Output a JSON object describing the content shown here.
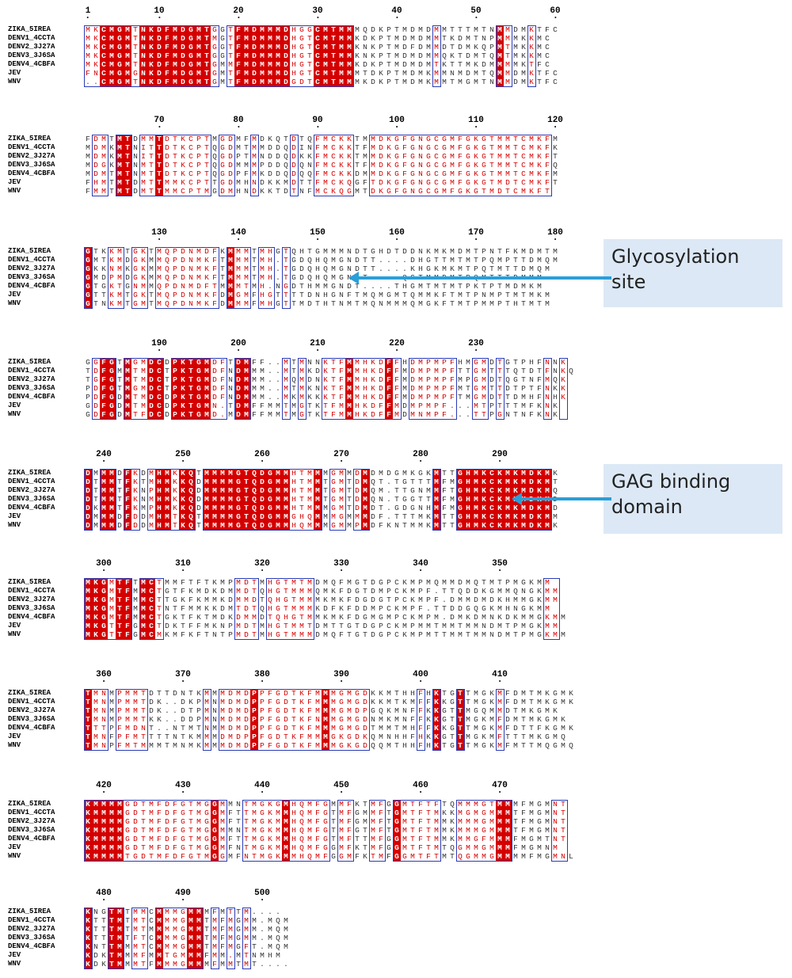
{
  "sequences": [
    "ZIKA_5IREA",
    "DENV1_4CCTA",
    "DENV2_3J27A",
    "DENV3_3J6SA",
    "DENV4_4CBFA",
    "JEV",
    "WNV"
  ],
  "blocks": [
    {
      "ticks": [
        "1",
        "10",
        "20",
        "30",
        "40",
        "50",
        "60"
      ],
      "tick_positions": [
        1,
        10,
        20,
        30,
        40,
        50,
        60
      ],
      "start": 1,
      "rows": [
        "MKCMGMTNKDFMDGMTGGTFMDMMMDHGGCMTMMMQDKPTMDMDMMTTTMTNMMDMKTFC",
        "MKCMGMTNKDFMDGMTMGTFMDMMMDHGTCMTMMKDKPTMDMDMMTKDMTNPMMMKKMC",
        "MKCMGMTNKDFMDGMTGGTFMDMMMDHGTCMTMMKNKPTMDFDMMDTDMKQPMTMKKMC",
        "MKCMGMTNKDFMDGMTGGTFMDMMMDHGTCMTMMKNKPTMDMDMMQKTDMTQMTMKKMC",
        "MKCMGMTNKDFMDGMTGMMFMDMMMDHGTCMTMMKDKPTMDMDMTKTTMKDMMMMKTFC",
        "FNCMGMGNKDFMDGMTGMTFMDMMMDHGTCMTMMMTDKPTMDMKMMNMDMTQMMDMKTFC",
        "..CMGMTNKDFMDGMTGMTFMDMMMDGDTCMTMMMKDKPTMDMKMMTMGMTNMMDMKTFC"
      ]
    },
    {
      "ticks": [
        "70",
        "80",
        "90",
        "100",
        "110",
        "120"
      ],
      "tick_positions": [
        70,
        80,
        90,
        100,
        110,
        120
      ],
      "start": 61,
      "rows": [
        "FDMTMTDMMTDTKCPTMGDMFMDKQTDTQFMCKKTMMDKGFGNGCGMFGKGTMMTCMKFM",
        "MDMKMTNITTDTKCPTQGDMTMMDDQDINFMCKKTFMDKGFGNGCGMFGKGTMMTCMKFK",
        "MDMKMTNITTDTKCPTQGDPTMNDDQDKKFMCKKTMMDKGFGNGCGMFGKGTMMTCMKFT",
        "MDGKMTNMTTDTKCPTQGDMMMPDDQDQNFMCKKTFMDKGFGNGCGMFGKGTMMTCMKFQ",
        "MDMTMTNMTTDTKCPTQGDPFMKDDQDQQFMCKKDMMDKGFGNGCGMFGKGTMMTCMKFM",
        "FHMTMTDMTTMMKCPTTGDMHNDKKMDTTFMCKQGFTDKGFGNGCGMFGKGTMDTCMKFT",
        "FMMTMTDMTTMMCPTMGDMHNDKKTDTNFMCKQGMTDKGFGNGCGMFGKGTMDTCMKFT"
      ]
    },
    {
      "ticks": [
        "130",
        "140",
        "150",
        "160",
        "170",
        "180"
      ],
      "tick_positions": [
        130,
        140,
        150,
        160,
        170,
        180
      ],
      "start": 121,
      "rows": [
        "GTKKMTGKTMQPDNMDFKMMMTMHGTQHTGMMMNDTGHDTDDNKMKMDMTPNTFKMDMTM",
        "GMTKMDGKMMQPDNMKFTMMMTMH.TGDQHQMGNDTT....DHGTTMTMTPQMPTTDMQM",
        "GKKNMKGKMMQPDNMKFTMMMTMH.TGDQHQMGNDTT....KHGKMKMTPQTMTTDMQM",
        "GMDPMDGKMMQPDNMKFTMMMTMH.TGDQHQMGNDT....QGTMMDMTPQMTTTDMMM",
        "GTGKTGNMMQPDNMDFTMMMTMH.NGDTHMMGNDT....THGMTMTMTPKTPTMDMKM",
        "GTTKMTGKTMQPDNMKFDMGMFHGTTTTDNHGNFTMQMGMTQMMKFTMTPNMPTMTMKM",
        "GTNKMTGMTMQPDNMKFDMMMFMHGTTMDTHTNMTMQNMMMQMGKFTMTPMMPTHTMTM"
      ]
    },
    {
      "ticks": [
        "190",
        "200",
        "210",
        "220",
        "230"
      ],
      "tick_positions": [
        190,
        200,
        210,
        220,
        230
      ],
      "start": 181,
      "rows": [
        "GGFGTMGMDCDPKTGMDFTDMFF..MTMNNKTFMMHKDFFHDMPMPFHMGMDTGTPHFNNK",
        "TDFGMMTMDCTPKTGMDFNDMMM..MTMKDKTFMMHKDFFMDMPMPFTTGMTTTQTDTFNKQ",
        "TGFGTMTMDCTPKTGMDFNDMMM..MQMDNKTFMMHKDFFMDMPMPFMPGMDTQGTNFMQK",
        "PDFGTMGMDCTPKTGMDFNDMMM..MTMKNKTFMMHKDFFMDMPMPFMTGMTTDTPTFNKK",
        "PDFGDMTMDCDPKTGMDFNDMMM..MKMKKKTFMMHKDFFMDMPMPFTMGMDTTDMHFNHK",
        "GDFGDMTMDCDPKTGMN.TDMFFMMTMGTKTFMMHKDFFMDMPMPF...MTPTTTMFKNK",
        "GDFGDMTFDCDPKTGMD.MDMFFMMTMGTKTFMMHKDFFMDMNMPF...TTPGNTNFKNK"
      ]
    },
    {
      "ticks": [
        "240",
        "250",
        "260",
        "270",
        "280",
        "290"
      ],
      "tick_positions": [
        240,
        250,
        260,
        270,
        280,
        290
      ],
      "start": 238,
      "rows": [
        "DMMMDFKDMHMKKQTMMMMGTQDGMMHTMMMGMMDMDMDGMKGKMTTGHMKCKMKMDKMK",
        "DTMMTFKTMHMKKQDMMMMGTQDGMMHTMMTGMTDMQT.TGTTTMFMGHMKCKMKMDKMT",
        "DTMMTFKNPHMKKQDMMMMGTQDGMMHTMMTGMTDMQM.TTGNMMFTGHMKCKMKMDKMQ",
        "DTMMTFKNMHMKKQDMMMMGTQDGMMHTMMTGMTDMQN.TGGTTMFMGHMKCKMKMDKMD",
        "DKMMTFKMPHMKKQDMMMMGTQDGMMHTMMMGMTDMDT.GDGNHMFMGHMKCKMKMDKMD",
        "DMMMDFDDMHMTKQTMMMMGTQDGMMGHQMMMGMMMDF.TTTMKMTTGHMKCKMKMDKMM",
        "DMMMDFDDMHMTKQTMMMMGTQDGMMHQMMMGMMPMDFKNTMMKMTTGHMKCKMKMDKMK"
      ]
    },
    {
      "ticks": [
        "300",
        "310",
        "320",
        "330",
        "340",
        "350"
      ],
      "tick_positions": [
        300,
        310,
        320,
        330,
        340,
        350
      ],
      "start": 298,
      "rows": [
        "MKGMTFTMCTMMFTFTKMPMDTMHGTMTMDMQFMGTDGPCKMPMQMMDMQTMTPMGKMM",
        "MKGMTFMMCTGTFKMDKDMMDTQHGTMMMQMKFDGTDMPCKMPF.TTQDDKGMMQNGKMM",
        "MKGMTFMMCTTGKFKMMKDMMDTQHGTMMMKMKFDGDGTPCKMPF.DMMDMDKHMMGKMM",
        "MKGMTFMMCTNTFMMKKDMTDTQHGTMMMKDFKFDDMPCKMPF.TTDDGQGKMHNGKMM",
        "MKGMTFMMCTGKTFKTMDKDMMDTQHGTMMKMKFDGMGMPCKMPM.DMKDMNKDKMMGKMM",
        "MKGTTFGMCTDKTFFMKNPMDTMHGTMMTDMTTGTDGPCKMPMMTMMTMMNDMTPMGKMM",
        "MKGTTFGMCMKMFKFTNTPMDTMHGTMMMDMQFTGTDGPCKMPMTTMMTMMNDMTPMGKMM"
      ]
    },
    {
      "ticks": [
        "360",
        "370",
        "380",
        "390",
        "400",
        "410"
      ],
      "tick_positions": [
        360,
        370,
        380,
        390,
        400,
        410
      ],
      "start": 358,
      "rows": [
        "TMNMPMMTDTTDNTKMMMDMDPPFGDTKFMMMGMGDKKMTHHFHKTGTTMGKMFDMTMKGMK",
        "TMNMPMMTDK..DKPMNMDMDPPFGDTKFMMMGMGDKKMTKMFFKKGTTMGKMFDMTMKGMK",
        "TMNMPMMTDK..DTPMNMDMDPPFGDTKFMMMGMDPGQKMNFFKKGTTMGQMMDTMKGMK",
        "TMNMPMMTKK..DDPMNMDMDPPFGDTKFNMMGMGDNMKMNFFKKGTTMGKMFDMTMKGMK",
        "TTTPFMDNT..NTMTNMMDMDPPFGDTKFMMMGMGDTMMTMHFFKKGTTMGKMFDTTFKGMK",
        "TMNFPFMTTTTNTKMMMDMDPPFGDTKFMMMGKGDKQMNHHFHKKGTTMGKMFTTTMKGMQ",
        "TMNPFMTMMMTMNMKMMMDMDPPFGDTKFMMMGKGDQQMTHHFHKTGTTMGKMFMTTMQGMQ"
      ]
    },
    {
      "ticks": [
        "420",
        "430",
        "440",
        "450",
        "460",
        "470"
      ],
      "tick_positions": [
        420,
        430,
        440,
        450,
        460,
        470
      ],
      "start": 418,
      "rows": [
        "KMMMMGDTMFDFGTMGGMMNTMGKGMHQMFGMMFKTMFGGMTFTFTQMMMGTMMMFMGMNT",
        "KMMMMGDTMFDFGTMGGMFTTMGKMMHQMFGTMFGMMFTGMTFTMKKMGMGMMMTFMGMNT",
        "KMMMMGDTMFDFGTMGGMFTTMGKMMHQMFGTMFGMMFTGMTFTMMKMMMGMMMTFMGMNT",
        "KMMMMGDTMFDFGTMGGMMNTMGKMMHQMFGTMFGTMFTGMTFTMMKMMMGMMMTFMGMNT",
        "KMMMMGDTMFDFGTMGGMFTTMGKMMHQMFGTMFTTMFGGMTFTMMKMMGFMMMFMGMTNT",
        "KMMMMGDTMFDFGTMGGMFNTMGKMMHQMFGGMFKTMFGGMTFTMTQGMMGMMMFMGMNM",
        "KMMMMTGDTMFDFGTMGGMFNTMGKMMHQMFGGMFKTMFGGMTFTMTQGMMGMMMMFMGMNL"
      ]
    },
    {
      "ticks": [
        "480",
        "490",
        "500"
      ],
      "tick_positions": [
        480,
        490,
        500
      ],
      "start": 478,
      "rows": [
        "KNGTMTMMCMMMGMMMFMTTM....",
        "KTTTMTMTCMMMGMMTMFMGMM.MQM",
        "KTTTMTMTMMMMGMMTMFMGMM.MQM",
        "KTTTMTFTCMMMGMMTMFMGMM.MQM",
        "KNTTMMMTCMMMGMMTMFMGFT.MQM",
        "KDKTMMMFMMTGMMMFMM.MTNMHM",
        "KDKTMMMTFMMMGMMMFMMTMT...."
      ]
    }
  ],
  "annotations": [
    {
      "label_line1": "Glycosylation",
      "label_line2": "site"
    },
    {
      "label_line1": "GAG binding",
      "label_line2": "domain"
    }
  ],
  "colors": {
    "strict": "#d40000",
    "frame": "#2a3bb5",
    "callout": "#dce8f5",
    "arrow": "#2a9fd8"
  }
}
